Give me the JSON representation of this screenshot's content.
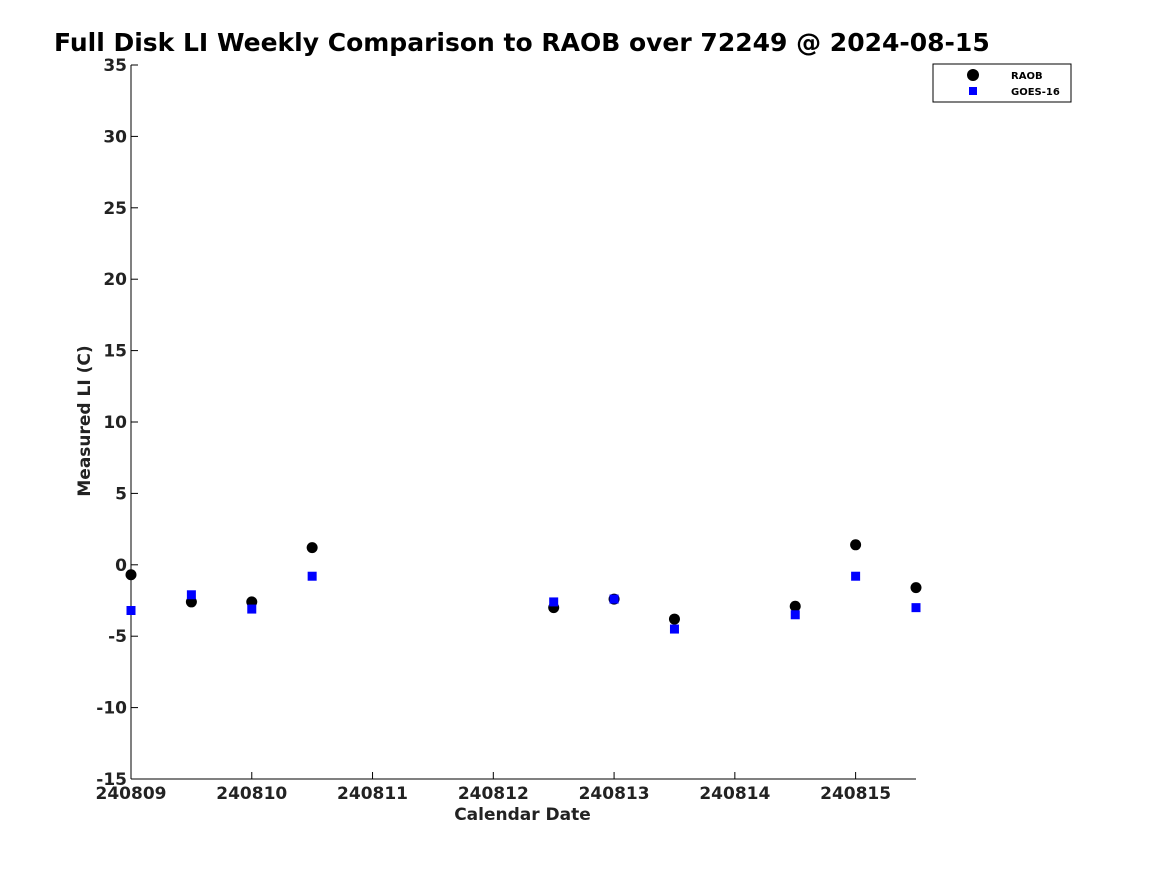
{
  "chart_data": {
    "type": "scatter",
    "title": "Full Disk LI Weekly Comparison to RAOB over 72249 @ 2024-08-15",
    "xlabel": "Calendar Date",
    "ylabel": "Measured LI (C)",
    "x_ticks": [
      "240809",
      "240810",
      "240811",
      "240812",
      "240813",
      "240814",
      "240815"
    ],
    "xlim": [
      "240809",
      "240815 12Z"
    ],
    "ylim": [
      -15,
      35
    ],
    "y_ticks": [
      -15,
      -10,
      -5,
      0,
      5,
      10,
      15,
      20,
      25,
      30,
      35
    ],
    "grid": false,
    "legend_position": "top-right",
    "series": [
      {
        "name": "RAOB",
        "marker": "circle",
        "color": "#000000",
        "points": [
          {
            "x": "240809 00Z",
            "y": -0.7
          },
          {
            "x": "240809 12Z",
            "y": -2.6
          },
          {
            "x": "240810 00Z",
            "y": -2.6
          },
          {
            "x": "240810 12Z",
            "y": 1.2
          },
          {
            "x": "240812 12Z",
            "y": -3.0
          },
          {
            "x": "240813 00Z",
            "y": -2.4
          },
          {
            "x": "240813 12Z",
            "y": -3.8
          },
          {
            "x": "240814 12Z",
            "y": -2.9
          },
          {
            "x": "240815 00Z",
            "y": 1.4
          },
          {
            "x": "240815 12Z",
            "y": -1.6
          }
        ]
      },
      {
        "name": "GOES-16",
        "marker": "square",
        "color": "#0000ff",
        "points": [
          {
            "x": "240809 00Z",
            "y": -3.2
          },
          {
            "x": "240809 12Z",
            "y": -2.1
          },
          {
            "x": "240810 00Z",
            "y": -3.1
          },
          {
            "x": "240810 12Z",
            "y": -0.8
          },
          {
            "x": "240812 12Z",
            "y": -2.6
          },
          {
            "x": "240813 00Z",
            "y": -2.4
          },
          {
            "x": "240813 12Z",
            "y": -4.5
          },
          {
            "x": "240814 12Z",
            "y": -3.5
          },
          {
            "x": "240815 00Z",
            "y": -0.8
          },
          {
            "x": "240815 12Z",
            "y": -3.0
          }
        ]
      }
    ]
  }
}
